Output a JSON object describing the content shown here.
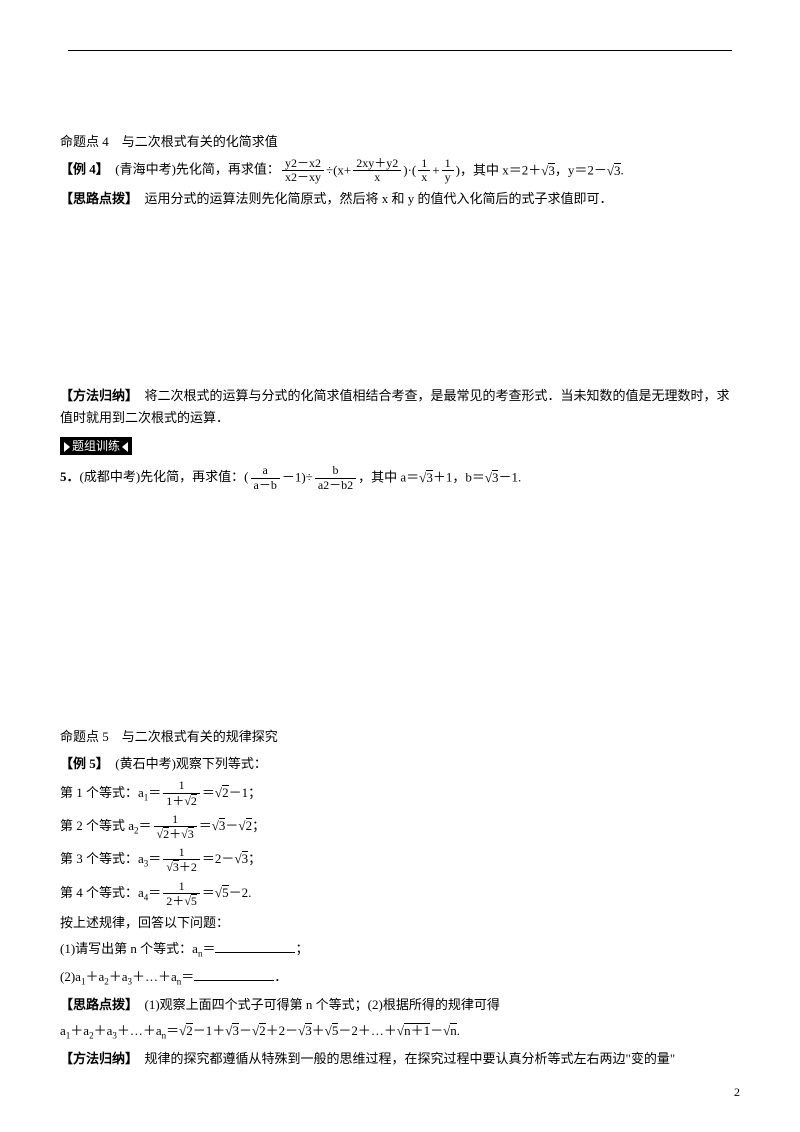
{
  "topic4": {
    "heading": "命题点 4　与二次根式有关的化简求值",
    "example_label": "【例 4】",
    "source": "　(青海中考)先化简，再求值：",
    "formula_parts": {
      "f1_num": "y2－x2",
      "f1_den": "x2－xy",
      "div": "÷(x+",
      "f2_num": "2xy＋y2",
      "f2_den": "x",
      "mid": ")·(",
      "f3a_num": "1",
      "f3a_den": "x",
      "plus": "+",
      "f3b_num": "1",
      "f3b_den": "y",
      "tail1": ")，其中 x＝2＋",
      "sq3a": "3",
      "tail2": "，y＝2－",
      "sq3b": "3",
      "tail3": "."
    },
    "hint_label": "【思路点拨】",
    "hint_text": "　运用分式的运算法则先化简原式，然后将 x 和 y 的值代入化简后的式子求值即可．",
    "method_label": "【方法归纳】",
    "method_text": "　将二次根式的运算与分式的化简求值相结合考查，是最常见的考查形式．当未知数的值是无理数时，求值时就用到二次根式的运算．",
    "badge": "题组训练",
    "q5_label": "5．",
    "q5_source": "(成都中考)先化简，再求值：(",
    "q5_parts": {
      "f1_num": "a",
      "f1_den": "a－b",
      "minus1": "－1)÷",
      "f2_num": "b",
      "f2_den": "a2－b2",
      "tail1": "，其中 a＝",
      "sq3a": "3",
      "tail2": "＋1，b＝",
      "sq3b": "3",
      "tail3": "－1."
    }
  },
  "topic5": {
    "heading": "命题点 5　与二次根式有关的规律探究",
    "example_label": "【例 5】",
    "source": "　(黄石中考)观察下列等式：",
    "eq_intro": [
      "第 1 个等式：a",
      "第 2 个等式 a",
      "第 3 个等式：a",
      "第 4 个等式：a"
    ],
    "eq1": {
      "lhs_sub": "1",
      "num": "1",
      "den_a": "1＋",
      "den_sq": "2",
      "eq": "＝",
      "r_sq": "2",
      "r_tail": "－1；"
    },
    "eq2": {
      "lhs_sub": "2",
      "num": "1",
      "den_sqa": "2",
      "den_mid": "＋",
      "den_sqb": "3",
      "eq": "＝",
      "r_sqa": "3",
      "r_mid": "－",
      "r_sqb": "2",
      "r_tail": "；"
    },
    "eq3": {
      "lhs_sub": "3",
      "num": "1",
      "den_sq": "3",
      "den_tail": "＋2",
      "eq": "＝",
      "r_head": "2－",
      "r_sq": "3",
      "r_tail": "；"
    },
    "eq4": {
      "lhs_sub": "4",
      "num": "1",
      "den_head": "2＋",
      "den_sq": "5",
      "eq": "＝",
      "r_sq": "5",
      "r_tail": "－2."
    },
    "follow": "按上述规律，回答以下问题：",
    "q1_a": "(1)请写出第 n 个等式：a",
    "q1_sub": "n",
    "q1_b": "＝",
    "q1_tail": "；",
    "q2_a": "(2)a",
    "q2_plus": "＋a",
    "q2_dots": "＋…＋a",
    "q2_eq": "＝",
    "q2_tail": "．",
    "hint_label": "【思路点拨】",
    "hint_text": "　(1)观察上面四个式子可得第 n 个等式；(2)根据所得的规律可得",
    "sum_line": {
      "head": "a",
      "subs": [
        "1",
        "2",
        "3"
      ],
      "plus": "＋a",
      "dots": "＋…＋a",
      "n": "n",
      "eq": "＝",
      "t1_sq": "2",
      "t1_tail": "－1＋",
      "t2_sq": "3",
      "t2_mid": "－",
      "t2_sqb": "2",
      "t2_tail": "＋2－",
      "t3_sq": "3",
      "t3_plus": "＋",
      "t4_sq": "5",
      "t4_tail": "－2＋…＋",
      "tn_sq": "n＋1",
      "tn_mid": "－",
      "tn_sqb": "n",
      "tn_tail": "."
    },
    "method_label": "【方法归纳】",
    "method_text": "　规律的探究都遵循从特殊到一般的思维过程，在探究过程中要认真分析等式左右两边\"变的量\""
  },
  "page_number": "2"
}
